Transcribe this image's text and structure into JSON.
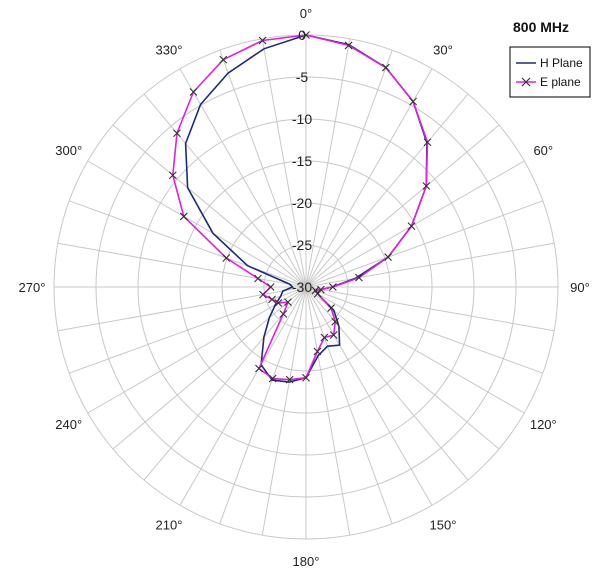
{
  "chart_data": {
    "type": "polar-line",
    "title": "800 MHz",
    "angle_labels": [
      "0°",
      "30°",
      "60°",
      "90°",
      "120°",
      "150°",
      "180°",
      "210°",
      "240°",
      "270°",
      "300°",
      "330°"
    ],
    "angle_ticks_deg": [
      0,
      30,
      60,
      90,
      120,
      150,
      180,
      210,
      240,
      270,
      300,
      330
    ],
    "radial_labels": [
      "0",
      "-5",
      "-10",
      "-15",
      "-20",
      "-25",
      "-30"
    ],
    "radial_ticks": [
      0,
      -5,
      -10,
      -15,
      -20,
      -25,
      -30
    ],
    "rlim": [
      -30,
      0
    ],
    "angle_step_deg": 10,
    "grid": true,
    "legend_position": "top-right",
    "series": [
      {
        "name": "H Plane",
        "color": "#1f2a7a",
        "marker": "none",
        "points": [
          {
            "angle": 0,
            "value": 0
          },
          {
            "angle": 10,
            "value": -0.7
          },
          {
            "angle": 20,
            "value": -2.2
          },
          {
            "angle": 30,
            "value": -4.5
          },
          {
            "angle": 40,
            "value": -7.6
          },
          {
            "angle": 50,
            "value": -11.3
          },
          {
            "angle": 60,
            "value": -15.5
          },
          {
            "angle": 70,
            "value": -19.6
          },
          {
            "angle": 80,
            "value": -24
          },
          {
            "angle": 90,
            "value": -26.9
          },
          {
            "angle": 100,
            "value": -28.2
          },
          {
            "angle": 110,
            "value": -28.8
          },
          {
            "angle": 120,
            "value": -28.4
          },
          {
            "angle": 130,
            "value": -25.7
          },
          {
            "angle": 140,
            "value": -23.9
          },
          {
            "angle": 150,
            "value": -22
          },
          {
            "angle": 160,
            "value": -22.5
          },
          {
            "angle": 170,
            "value": -21.7
          },
          {
            "angle": 180,
            "value": -19.2
          },
          {
            "angle": 190,
            "value": -18.5
          },
          {
            "angle": 200,
            "value": -18.2
          },
          {
            "angle": 210,
            "value": -19.3
          },
          {
            "angle": 220,
            "value": -22.2
          },
          {
            "angle": 230,
            "value": -24.3
          },
          {
            "angle": 240,
            "value": -25.8
          },
          {
            "angle": 250,
            "value": -26.8
          },
          {
            "angle": 260,
            "value": -27.2
          },
          {
            "angle": 270,
            "value": -28.4
          },
          {
            "angle": 280,
            "value": -28
          },
          {
            "angle": 290,
            "value": -22.6
          },
          {
            "angle": 300,
            "value": -17.2
          },
          {
            "angle": 310,
            "value": -11.6
          },
          {
            "angle": 320,
            "value": -7.7
          },
          {
            "angle": 330,
            "value": -4.9
          },
          {
            "angle": 340,
            "value": -2.9
          },
          {
            "angle": 350,
            "value": -1.2
          },
          {
            "angle": 360,
            "value": 0
          }
        ]
      },
      {
        "name": "E plane",
        "color": "#e020e0",
        "marker": "x",
        "points": [
          {
            "angle": 0,
            "value": 0
          },
          {
            "angle": 10,
            "value": -0.8
          },
          {
            "angle": 20,
            "value": -2.2
          },
          {
            "angle": 30,
            "value": -4.5
          },
          {
            "angle": 40,
            "value": -7.5
          },
          {
            "angle": 50,
            "value": -11.3
          },
          {
            "angle": 60,
            "value": -15.5
          },
          {
            "angle": 70,
            "value": -19.6
          },
          {
            "angle": 80,
            "value": -23.6
          },
          {
            "angle": 90,
            "value": -26.8
          },
          {
            "angle": 100,
            "value": -28.2
          },
          {
            "angle": 110,
            "value": -28.8
          },
          {
            "angle": 120,
            "value": -28.4
          },
          {
            "angle": 130,
            "value": -26.1
          },
          {
            "angle": 140,
            "value": -24.6
          },
          {
            "angle": 150,
            "value": -23.4
          },
          {
            "angle": 160,
            "value": -23.6
          },
          {
            "angle": 170,
            "value": -22.2
          },
          {
            "angle": 180,
            "value": -19.2
          },
          {
            "angle": 190,
            "value": -18.8
          },
          {
            "angle": 200,
            "value": -18.4
          },
          {
            "angle": 210,
            "value": -18.8
          },
          {
            "angle": 220,
            "value": -25.8
          },
          {
            "angle": 230,
            "value": -27.2
          },
          {
            "angle": 240,
            "value": -26.2
          },
          {
            "angle": 250,
            "value": -25.7
          },
          {
            "angle": 260,
            "value": -24.8
          },
          {
            "angle": 270,
            "value": -25.8
          },
          {
            "angle": 280,
            "value": -24.2
          },
          {
            "angle": 290,
            "value": -19.9
          },
          {
            "angle": 300,
            "value": -13.2
          },
          {
            "angle": 310,
            "value": -9.3
          },
          {
            "angle": 320,
            "value": -6.1
          },
          {
            "angle": 330,
            "value": -3.2
          },
          {
            "angle": 340,
            "value": -1.2
          },
          {
            "angle": 350,
            "value": -0.2
          },
          {
            "angle": 360,
            "value": 0
          }
        ]
      }
    ]
  }
}
